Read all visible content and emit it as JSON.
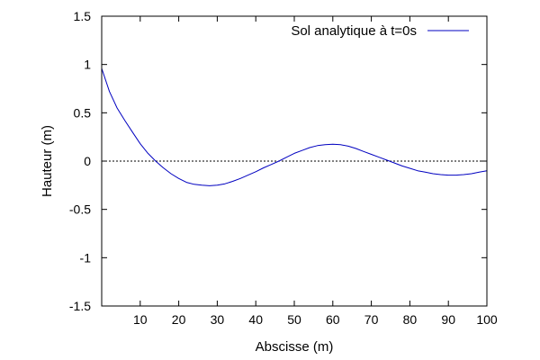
{
  "chart_data": {
    "type": "line",
    "xlabel": "Abscisse (m)",
    "ylabel": "Hauteur (m)",
    "xlim": [
      0,
      100
    ],
    "ylim": [
      -1.5,
      1.5
    ],
    "xticks": [
      10,
      20,
      30,
      40,
      50,
      60,
      70,
      80,
      90,
      100
    ],
    "yticks": [
      1.5,
      1,
      0.5,
      0,
      -0.5,
      -1,
      -1.5
    ],
    "xtick_labels": [
      "10",
      "20",
      "30",
      "40",
      "50",
      "60",
      "70",
      "80",
      "90",
      "100"
    ],
    "ytick_labels": [
      "1.5",
      "1",
      "0.5",
      "0",
      "-0.5",
      "-1",
      "-1.5"
    ],
    "grid": false,
    "legend_position": "top-right",
    "zero_line": {
      "y": 0,
      "style": "dotted",
      "color": "#000000"
    },
    "series": [
      {
        "name": "Sol analytique à t=0s",
        "color": "#0000c0",
        "x": [
          0,
          2,
          4,
          6,
          8,
          10,
          12,
          14,
          16,
          18,
          20,
          22,
          24,
          26,
          28,
          30,
          32,
          34,
          36,
          38,
          40,
          42,
          44,
          46,
          48,
          50,
          52,
          54,
          56,
          58,
          60,
          62,
          64,
          66,
          68,
          70,
          72,
          74,
          76,
          78,
          80,
          82,
          84,
          86,
          88,
          90,
          92,
          94,
          96,
          98,
          100
        ],
        "y": [
          0.96,
          0.72,
          0.55,
          0.42,
          0.3,
          0.18,
          0.08,
          0.0,
          -0.07,
          -0.13,
          -0.18,
          -0.22,
          -0.24,
          -0.25,
          -0.255,
          -0.25,
          -0.235,
          -0.21,
          -0.18,
          -0.145,
          -0.11,
          -0.07,
          -0.035,
          0.0,
          0.04,
          0.08,
          0.11,
          0.14,
          0.16,
          0.17,
          0.175,
          0.17,
          0.155,
          0.13,
          0.1,
          0.07,
          0.04,
          0.01,
          -0.02,
          -0.05,
          -0.075,
          -0.1,
          -0.115,
          -0.13,
          -0.14,
          -0.145,
          -0.145,
          -0.14,
          -0.13,
          -0.115,
          -0.1
        ]
      }
    ]
  }
}
